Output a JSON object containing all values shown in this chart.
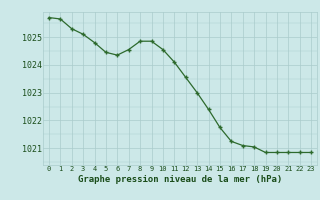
{
  "hours": [
    0,
    1,
    2,
    3,
    4,
    5,
    6,
    7,
    8,
    9,
    10,
    11,
    12,
    13,
    14,
    15,
    16,
    17,
    18,
    19,
    20,
    21,
    22,
    23
  ],
  "values": [
    1025.7,
    1025.65,
    1025.3,
    1025.1,
    1024.8,
    1024.45,
    1024.35,
    1024.55,
    1024.85,
    1024.85,
    1024.55,
    1024.1,
    1023.55,
    1023.0,
    1022.4,
    1021.75,
    1021.25,
    1021.1,
    1021.05,
    1020.85,
    1020.85,
    1020.85,
    1020.85,
    1020.85
  ],
  "line_color": "#2d6a2d",
  "marker_color": "#2d6a2d",
  "bg_color": "#cce8e8",
  "plot_bg_color": "#cce8e8",
  "grid_color": "#aacccc",
  "bottom_bg": "#d4eed4",
  "xlabel": "Graphe pression niveau de la mer (hPa)",
  "xlabel_color": "#1a4d1a",
  "tick_label_color": "#1a4d1a",
  "ylim": [
    1020.4,
    1025.9
  ],
  "yticks": [
    1021,
    1022,
    1023,
    1024,
    1025
  ],
  "figsize": [
    3.2,
    2.0
  ],
  "dpi": 100
}
